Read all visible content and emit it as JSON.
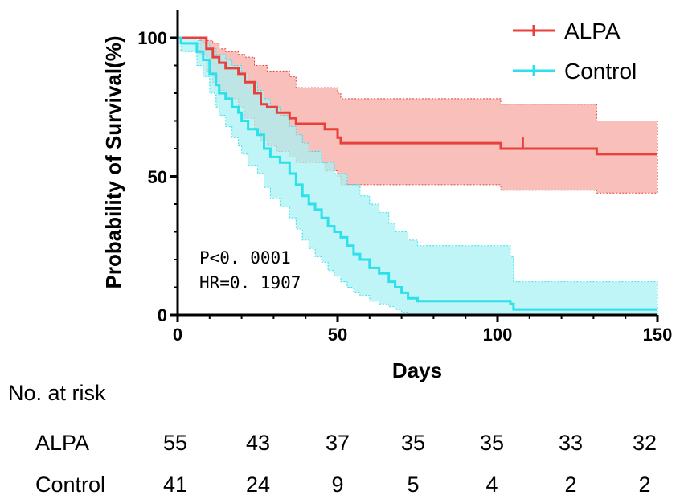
{
  "chart_data": {
    "type": "line",
    "subtype": "kaplan-meier",
    "title": "",
    "xlabel": "Days",
    "ylabel": "Probability of Survival(%)",
    "xlim": [
      0,
      150
    ],
    "ylim": [
      0,
      100
    ],
    "xticks": [
      0,
      50,
      100,
      150
    ],
    "yticks": [
      0,
      50,
      100
    ],
    "legend_position": "top-right",
    "series": [
      {
        "name": "ALPA",
        "color": "#e8403a",
        "band_color": "#f7a9a4",
        "steps": [
          [
            0,
            100
          ],
          [
            7,
            100
          ],
          [
            9,
            96
          ],
          [
            11,
            93
          ],
          [
            13,
            91
          ],
          [
            15,
            89
          ],
          [
            19,
            87
          ],
          [
            21,
            84
          ],
          [
            24,
            80
          ],
          [
            26,
            76
          ],
          [
            28,
            75
          ],
          [
            31,
            73
          ],
          [
            35,
            71
          ],
          [
            37,
            69
          ],
          [
            46,
            67
          ],
          [
            50,
            64
          ],
          [
            51,
            62
          ],
          [
            100,
            62
          ],
          [
            101,
            60
          ],
          [
            130,
            60
          ],
          [
            131,
            58
          ],
          [
            150,
            58
          ]
        ],
        "upper": [
          [
            0,
            100
          ],
          [
            7,
            100
          ],
          [
            9,
            99
          ],
          [
            11,
            98
          ],
          [
            13,
            96
          ],
          [
            15,
            95
          ],
          [
            19,
            94
          ],
          [
            21,
            93
          ],
          [
            24,
            90
          ],
          [
            28,
            88
          ],
          [
            35,
            86
          ],
          [
            37,
            82
          ],
          [
            50,
            80
          ],
          [
            51,
            78
          ],
          [
            100,
            78
          ],
          [
            101,
            76
          ],
          [
            130,
            76
          ],
          [
            131,
            70
          ],
          [
            150,
            70
          ]
        ],
        "lower": [
          [
            0,
            100
          ],
          [
            7,
            94
          ],
          [
            9,
            88
          ],
          [
            11,
            84
          ],
          [
            13,
            81
          ],
          [
            15,
            78
          ],
          [
            19,
            75
          ],
          [
            21,
            71
          ],
          [
            24,
            67
          ],
          [
            26,
            63
          ],
          [
            28,
            61
          ],
          [
            31,
            59
          ],
          [
            35,
            57
          ],
          [
            37,
            55
          ],
          [
            46,
            52
          ],
          [
            50,
            50
          ],
          [
            51,
            47
          ],
          [
            100,
            47
          ],
          [
            101,
            45
          ],
          [
            130,
            45
          ],
          [
            131,
            44
          ],
          [
            150,
            44
          ]
        ],
        "censor_marks": [
          [
            108,
            62
          ]
        ]
      },
      {
        "name": "Control",
        "color": "#2ee0ea",
        "band_color": "#a9f2f4",
        "steps": [
          [
            0,
            100
          ],
          [
            1,
            98
          ],
          [
            6,
            95
          ],
          [
            8,
            92
          ],
          [
            10,
            87
          ],
          [
            12,
            83
          ],
          [
            13,
            80
          ],
          [
            15,
            78
          ],
          [
            17,
            75
          ],
          [
            19,
            73
          ],
          [
            20,
            70
          ],
          [
            22,
            67
          ],
          [
            25,
            65
          ],
          [
            27,
            60
          ],
          [
            29,
            57
          ],
          [
            32,
            55
          ],
          [
            35,
            51
          ],
          [
            37,
            47
          ],
          [
            39,
            43
          ],
          [
            41,
            40
          ],
          [
            43,
            38
          ],
          [
            45,
            35
          ],
          [
            47,
            32
          ],
          [
            49,
            30
          ],
          [
            51,
            28
          ],
          [
            53,
            25
          ],
          [
            55,
            22
          ],
          [
            57,
            20
          ],
          [
            60,
            17
          ],
          [
            63,
            15
          ],
          [
            66,
            12
          ],
          [
            68,
            10
          ],
          [
            70,
            8
          ],
          [
            72,
            6
          ],
          [
            75,
            5
          ],
          [
            100,
            5
          ],
          [
            104,
            4
          ],
          [
            105,
            2
          ],
          [
            150,
            2
          ]
        ],
        "upper": [
          [
            0,
            100
          ],
          [
            1,
            100
          ],
          [
            6,
            99
          ],
          [
            8,
            98
          ],
          [
            10,
            96
          ],
          [
            12,
            94
          ],
          [
            15,
            92
          ],
          [
            17,
            90
          ],
          [
            20,
            87
          ],
          [
            22,
            84
          ],
          [
            25,
            81
          ],
          [
            27,
            78
          ],
          [
            29,
            75
          ],
          [
            32,
            72
          ],
          [
            35,
            68
          ],
          [
            37,
            65
          ],
          [
            39,
            62
          ],
          [
            41,
            59
          ],
          [
            45,
            55
          ],
          [
            49,
            51
          ],
          [
            53,
            47
          ],
          [
            57,
            43
          ],
          [
            60,
            40
          ],
          [
            63,
            37
          ],
          [
            66,
            33
          ],
          [
            68,
            30
          ],
          [
            72,
            27
          ],
          [
            75,
            25
          ],
          [
            100,
            25
          ],
          [
            104,
            21
          ],
          [
            105,
            12
          ],
          [
            150,
            12
          ]
        ],
        "lower": [
          [
            0,
            100
          ],
          [
            1,
            95
          ],
          [
            6,
            90
          ],
          [
            8,
            86
          ],
          [
            10,
            80
          ],
          [
            12,
            75
          ],
          [
            13,
            72
          ],
          [
            15,
            68
          ],
          [
            17,
            64
          ],
          [
            19,
            61
          ],
          [
            20,
            58
          ],
          [
            22,
            54
          ],
          [
            25,
            51
          ],
          [
            27,
            46
          ],
          [
            29,
            42
          ],
          [
            32,
            39
          ],
          [
            35,
            35
          ],
          [
            37,
            31
          ],
          [
            39,
            27
          ],
          [
            41,
            24
          ],
          [
            43,
            21
          ],
          [
            45,
            19
          ],
          [
            47,
            16
          ],
          [
            49,
            14
          ],
          [
            51,
            12
          ],
          [
            53,
            10
          ],
          [
            55,
            8
          ],
          [
            57,
            7
          ],
          [
            60,
            5
          ],
          [
            63,
            4
          ],
          [
            66,
            3
          ],
          [
            68,
            2
          ],
          [
            70,
            1
          ],
          [
            72,
            0
          ],
          [
            150,
            0
          ]
        ],
        "censor_marks": []
      }
    ],
    "annotations": [
      "P<0. 0001",
      "HR=0. 1907"
    ],
    "risk_table": {
      "title": "No. at risk",
      "rows": [
        {
          "label": "ALPA",
          "values": [
            55,
            43,
            37,
            35,
            35,
            33,
            32
          ]
        },
        {
          "label": "Control",
          "values": [
            41,
            24,
            9,
            5,
            4,
            2,
            2
          ]
        }
      ]
    }
  }
}
